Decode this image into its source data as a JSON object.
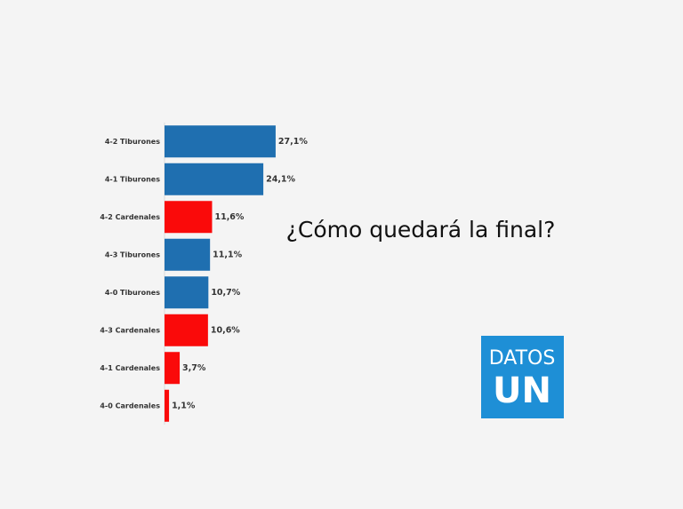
{
  "chart_data": {
    "type": "bar",
    "orientation": "horizontal",
    "title": "¿Cómo quedará la final?",
    "categories": [
      "4-2 Tiburones",
      "4-1 Tiburones",
      "4-2 Cardenales",
      "4-3 Tiburones",
      "4-0 Tiburones",
      "4-3 Cardenales",
      "4-1 Cardenales",
      "4-0 Cardenales"
    ],
    "values": [
      27.1,
      24.1,
      11.6,
      11.1,
      10.7,
      10.6,
      3.7,
      1.1
    ],
    "value_labels": [
      "27,1%",
      "24,1%",
      "11,6%",
      "11,1%",
      "10,7%",
      "10,6%",
      "3,7%",
      "1,1%"
    ],
    "colors": [
      "#1f6fb0",
      "#1f6fb0",
      "#fa0a0a",
      "#1f6fb0",
      "#1f6fb0",
      "#fa0a0a",
      "#fa0a0a",
      "#fa0a0a"
    ]
  },
  "logo": {
    "line1": "DATOS",
    "line2": "UN"
  }
}
